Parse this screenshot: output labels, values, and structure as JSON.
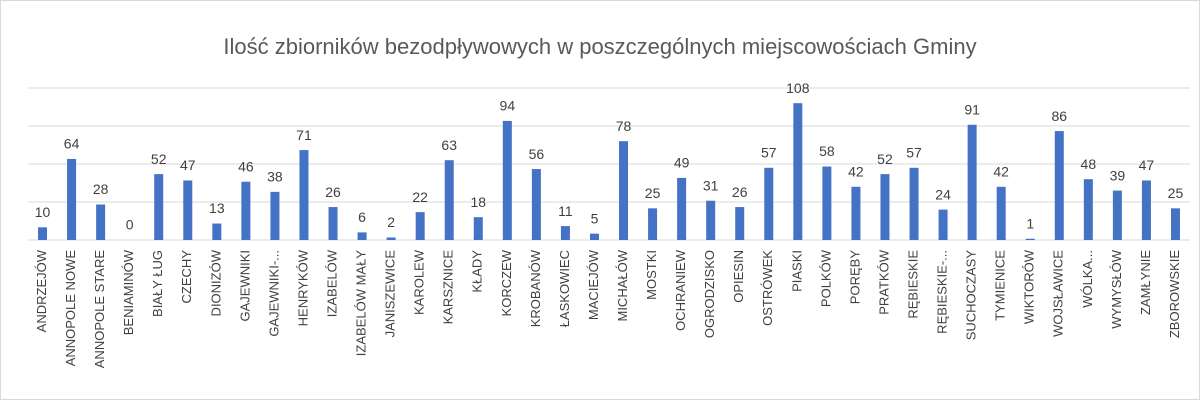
{
  "chart_data": {
    "type": "bar",
    "title": "Ilość zbiorników bezodpływowych w poszczególnych miejscowościach Gminy",
    "categories": [
      "ANDRZEJÓW",
      "ANNOPOLE NOWE",
      "ANNOPOLE STARE",
      "BENIAMINÓW",
      "BIAŁY ŁUG",
      "CZECHY",
      "DIONIZÓW",
      "GAJEWNIKI",
      "GAJEWNIKI-...",
      "HENRYKÓW",
      "IZABELÓW",
      "IZABELÓW MAŁY",
      "JANISZEWICE",
      "KAROLEW",
      "KARSZNICE",
      "KŁADY",
      "KORCZEW",
      "KROBANÓW",
      "ŁASKOWIEC",
      "MACIEJÓW",
      "MICHAŁÓW",
      "MOSTKI",
      "OCHRANIEW",
      "OGRODZISKO",
      "OPIESIN",
      "OSTRÓWEK",
      "PIASKI",
      "POLKÓW",
      "PORĘBY",
      "PRATKÓW",
      "RĘBIESKIE",
      "RĘBIESKIE-...",
      "SUCHOCZASY",
      "TYMIENICE",
      "WIKTORÓW",
      "WOJSŁAWICE",
      "WÓLKA...",
      "WYMYSŁÓW",
      "ZAMŁYNIE",
      "ZBOROWSKIE"
    ],
    "values": [
      10,
      64,
      28,
      0,
      52,
      47,
      13,
      46,
      38,
      71,
      26,
      6,
      2,
      22,
      63,
      18,
      94,
      56,
      11,
      5,
      78,
      25,
      49,
      31,
      26,
      57,
      108,
      58,
      42,
      52,
      57,
      24,
      91,
      42,
      1,
      86,
      48,
      39,
      47,
      25
    ],
    "color": "#4472c4",
    "ylim": [
      0,
      120
    ],
    "yticks": [
      0,
      30,
      60,
      90,
      120
    ],
    "grid": true
  }
}
